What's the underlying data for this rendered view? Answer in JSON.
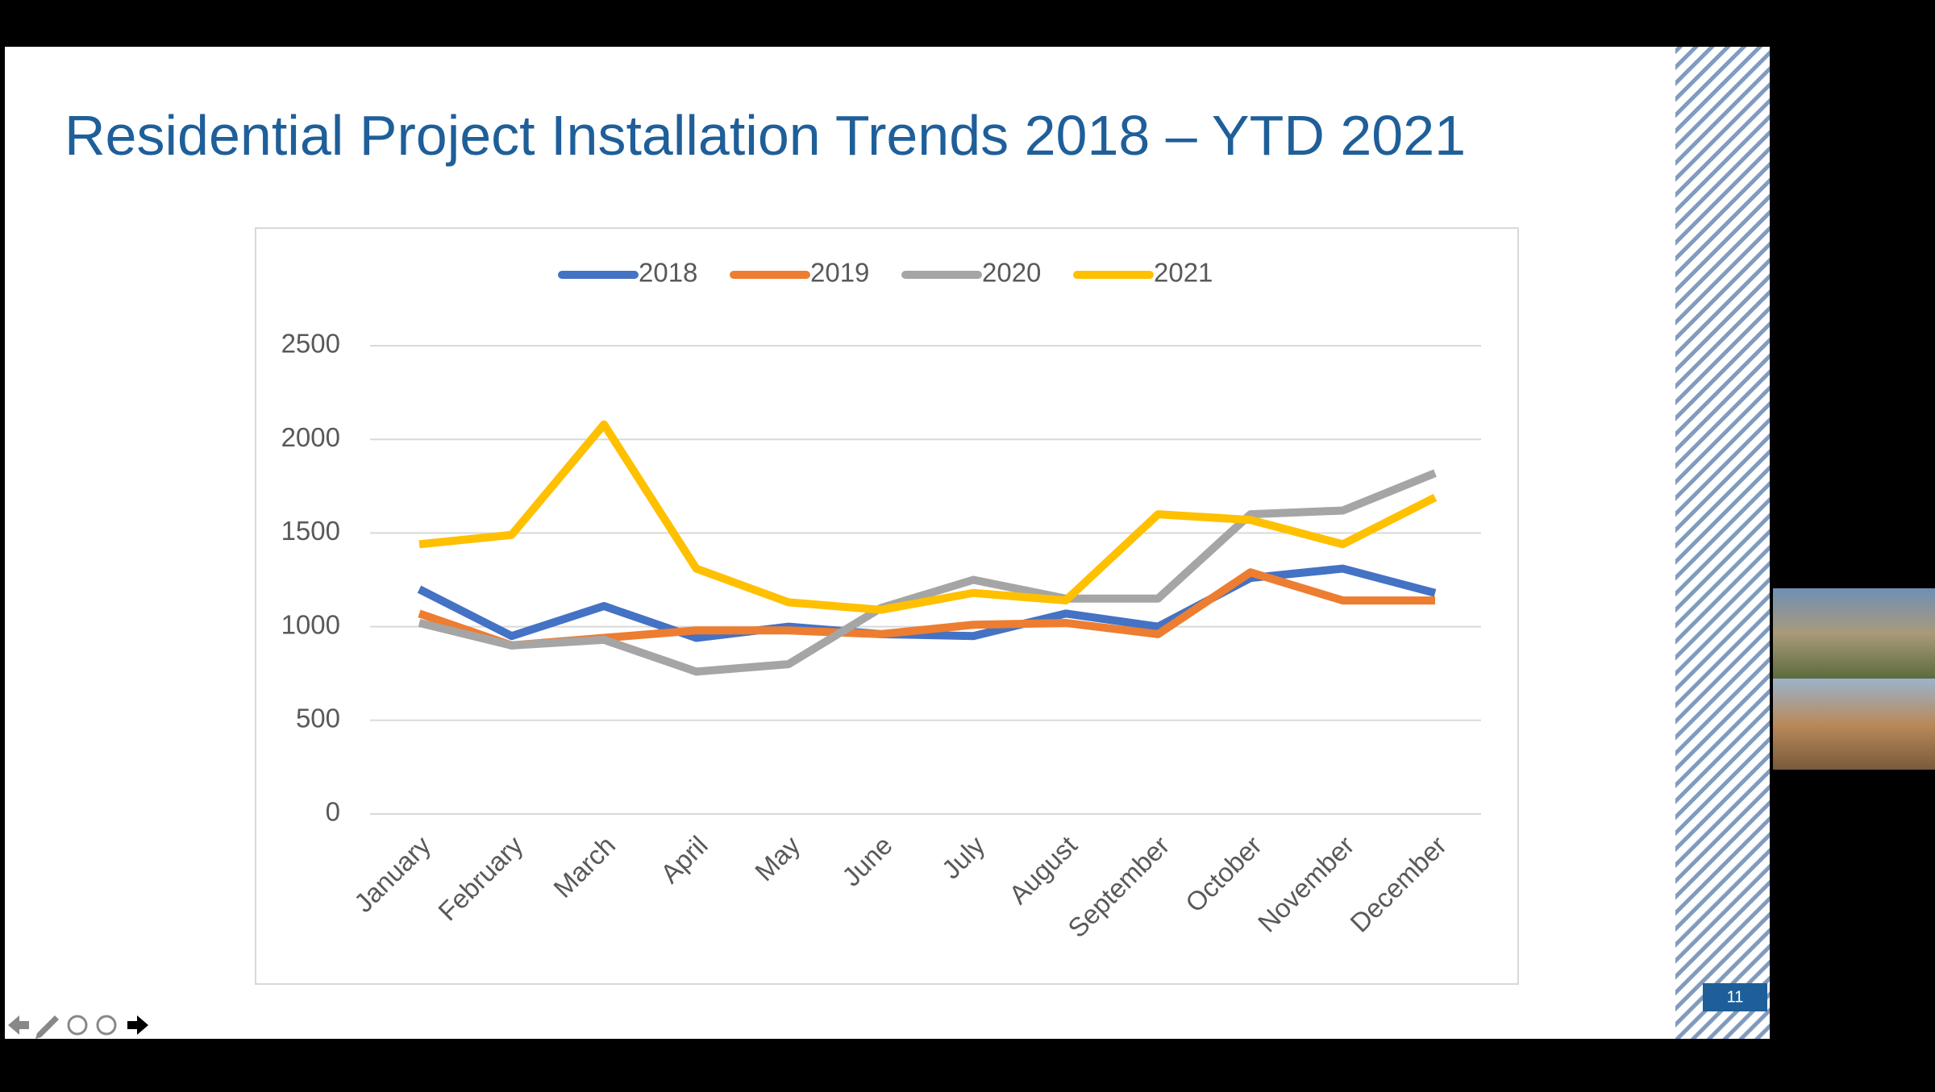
{
  "slide": {
    "title": "Residential Project Installation Trends 2018 – YTD 2021",
    "page_number": "11"
  },
  "chart_data": {
    "type": "line",
    "categories": [
      "January",
      "February",
      "March",
      "April",
      "May",
      "June",
      "July",
      "August",
      "September",
      "October",
      "November",
      "December"
    ],
    "series": [
      {
        "name": "2018",
        "color": "#4472c4",
        "values": [
          1200,
          950,
          1110,
          940,
          1000,
          960,
          950,
          1070,
          1000,
          1260,
          1310,
          1180
        ]
      },
      {
        "name": "2019",
        "color": "#ed7d31",
        "values": [
          1070,
          900,
          940,
          980,
          980,
          960,
          1010,
          1020,
          960,
          1290,
          1140,
          1140
        ]
      },
      {
        "name": "2020",
        "color": "#a5a5a5",
        "values": [
          1020,
          900,
          930,
          760,
          800,
          1100,
          1250,
          1150,
          1150,
          1600,
          1620,
          1820
        ]
      },
      {
        "name": "2021",
        "color": "#ffc000",
        "values": [
          1440,
          1490,
          2080,
          1310,
          1130,
          1090,
          1180,
          1140,
          1600,
          1570,
          1440,
          1690
        ]
      }
    ],
    "ylim": [
      0,
      2500
    ],
    "yticks": [
      0,
      500,
      1000,
      1500,
      2000,
      2500
    ],
    "grid": true,
    "legend": "top"
  }
}
